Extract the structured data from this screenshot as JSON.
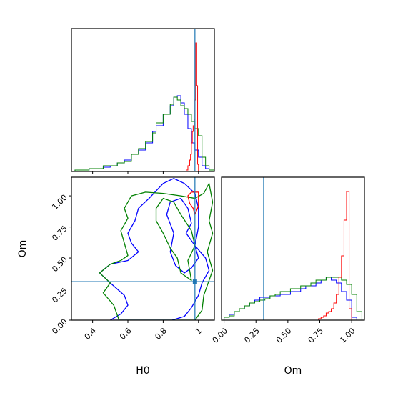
{
  "chart_data": [
    {
      "panel": "H0-marginal",
      "type": "histogram",
      "title": "",
      "xlabel": "",
      "ylabel": "",
      "xlim": [
        0.28,
        1.09
      ],
      "ylim": [
        0,
        1.0
      ],
      "xticks": [
        0.4,
        0.6,
        0.8,
        1.0
      ],
      "truth": 0.98,
      "truth_color": "#1f77b4",
      "series": [
        {
          "color": "#0000ff",
          "edges": [
            0.3,
            0.34,
            0.38,
            0.42,
            0.46,
            0.5,
            0.54,
            0.58,
            0.62,
            0.66,
            0.7,
            0.74,
            0.76,
            0.8,
            0.84,
            0.86,
            0.88,
            0.9,
            0.92,
            0.94,
            0.96,
            0.98,
            1.0,
            1.02,
            1.04,
            1.06,
            1.09
          ],
          "values": [
            0.01,
            0.01,
            0.02,
            0.02,
            0.03,
            0.04,
            0.06,
            0.08,
            0.12,
            0.15,
            0.2,
            0.28,
            0.32,
            0.4,
            0.46,
            0.52,
            0.53,
            0.48,
            0.4,
            0.3,
            0.2,
            0.15,
            0.1,
            0.04,
            0.02,
            0.01
          ]
        },
        {
          "color": "#008000",
          "edges": [
            0.3,
            0.34,
            0.38,
            0.42,
            0.46,
            0.5,
            0.54,
            0.58,
            0.62,
            0.66,
            0.7,
            0.74,
            0.76,
            0.8,
            0.84,
            0.86,
            0.88,
            0.9,
            0.92,
            0.94,
            0.96,
            0.98,
            1.0,
            1.02,
            1.04,
            1.06,
            1.09
          ],
          "values": [
            0.01,
            0.01,
            0.02,
            0.02,
            0.04,
            0.04,
            0.06,
            0.07,
            0.12,
            0.16,
            0.21,
            0.27,
            0.34,
            0.4,
            0.47,
            0.52,
            0.5,
            0.46,
            0.44,
            0.4,
            0.35,
            0.3,
            0.25,
            0.1,
            0.04,
            0.01
          ]
        },
        {
          "color": "#ff0000",
          "edges": [
            0.93,
            0.94,
            0.95,
            0.955,
            0.96,
            0.965,
            0.97,
            0.975,
            0.98,
            0.985,
            0.99,
            0.995,
            1.0
          ],
          "values": [
            0.01,
            0.04,
            0.08,
            0.12,
            0.2,
            0.28,
            0.32,
            0.36,
            0.5,
            0.9,
            0.6,
            0.05
          ]
        }
      ]
    },
    {
      "panel": "Om-marginal",
      "type": "histogram",
      "title": "",
      "xlabel": "Om",
      "ylabel": "",
      "xlim": [
        -0.02,
        1.1
      ],
      "ylim": [
        0,
        1.0
      ],
      "xticks": [
        0.0,
        0.25,
        0.5,
        0.75,
        1.0
      ],
      "xticklabels": [
        "0.00",
        "0.25",
        "0.50",
        "0.75",
        "1.00"
      ],
      "truth": 0.31,
      "truth_color": "#1f77b4",
      "series": [
        {
          "color": "#0000ff",
          "edges": [
            0.0,
            0.04,
            0.08,
            0.12,
            0.16,
            0.2,
            0.24,
            0.28,
            0.32,
            0.36,
            0.4,
            0.44,
            0.48,
            0.52,
            0.56,
            0.6,
            0.64,
            0.68,
            0.72,
            0.76,
            0.8,
            0.84,
            0.88,
            0.92,
            0.96,
            1.0,
            1.04
          ],
          "values": [
            0.02,
            0.04,
            0.06,
            0.08,
            0.1,
            0.12,
            0.14,
            0.16,
            0.16,
            0.17,
            0.17,
            0.18,
            0.18,
            0.2,
            0.2,
            0.22,
            0.24,
            0.24,
            0.26,
            0.28,
            0.3,
            0.28,
            0.26,
            0.2,
            0.14,
            0.02
          ]
        },
        {
          "color": "#008000",
          "edges": [
            0.0,
            0.04,
            0.08,
            0.12,
            0.16,
            0.2,
            0.24,
            0.28,
            0.32,
            0.36,
            0.4,
            0.44,
            0.48,
            0.52,
            0.56,
            0.6,
            0.64,
            0.68,
            0.72,
            0.76,
            0.8,
            0.84,
            0.88,
            0.92,
            0.96,
            1.0,
            1.04,
            1.08
          ],
          "values": [
            0.02,
            0.03,
            0.06,
            0.08,
            0.1,
            0.12,
            0.13,
            0.14,
            0.15,
            0.17,
            0.18,
            0.2,
            0.2,
            0.22,
            0.22,
            0.24,
            0.24,
            0.26,
            0.28,
            0.28,
            0.3,
            0.3,
            0.3,
            0.28,
            0.25,
            0.18,
            0.06
          ]
        },
        {
          "color": "#ff0000",
          "edges": [
            0.74,
            0.76,
            0.78,
            0.8,
            0.82,
            0.84,
            0.86,
            0.88,
            0.9,
            0.92,
            0.94,
            0.96,
            0.98,
            1.0
          ],
          "values": [
            0.01,
            0.02,
            0.03,
            0.05,
            0.06,
            0.08,
            0.12,
            0.18,
            0.3,
            0.45,
            0.7,
            0.9,
            0.08
          ]
        }
      ]
    },
    {
      "panel": "H0-Om-joint",
      "type": "contour",
      "title": "",
      "xlabel": "H0",
      "ylabel": "Om",
      "xlim": [
        0.28,
        1.09
      ],
      "ylim": [
        0.0,
        1.15
      ],
      "xticks": [
        0.4,
        0.6,
        0.8,
        1.0
      ],
      "yticks": [
        0.0,
        0.25,
        0.5,
        0.75,
        1.0
      ],
      "yticklabels": [
        "0.00",
        "0.25",
        "0.50",
        "0.75",
        "1.00"
      ],
      "truth": [
        0.98,
        0.31
      ],
      "truth_color": "#1f77b4",
      "series": [
        {
          "color": "#0000ff",
          "contours": [
            [
              [
                0.5,
                0.0
              ],
              [
                0.56,
                0.05
              ],
              [
                0.6,
                0.12
              ],
              [
                0.58,
                0.2
              ],
              [
                0.5,
                0.3
              ],
              [
                0.44,
                0.38
              ],
              [
                0.5,
                0.45
              ],
              [
                0.6,
                0.48
              ],
              [
                0.66,
                0.55
              ],
              [
                0.62,
                0.62
              ],
              [
                0.6,
                0.7
              ],
              [
                0.64,
                0.8
              ],
              [
                0.66,
                0.9
              ],
              [
                0.72,
                0.98
              ],
              [
                0.8,
                1.1
              ],
              [
                0.86,
                1.14
              ],
              [
                0.92,
                1.1
              ],
              [
                0.98,
                1.02
              ],
              [
                1.0,
                0.9
              ],
              [
                1.0,
                0.75
              ],
              [
                0.98,
                0.6
              ],
              [
                1.04,
                0.5
              ],
              [
                1.06,
                0.4
              ],
              [
                1.02,
                0.3
              ],
              [
                1.0,
                0.2
              ],
              [
                0.96,
                0.1
              ],
              [
                0.92,
                0.03
              ],
              [
                0.85,
                0.0
              ]
            ],
            [
              [
                0.84,
                0.95
              ],
              [
                0.9,
                0.98
              ],
              [
                0.94,
                0.9
              ],
              [
                0.96,
                0.78
              ],
              [
                0.93,
                0.7
              ],
              [
                0.98,
                0.6
              ],
              [
                1.0,
                0.5
              ],
              [
                0.96,
                0.42
              ],
              [
                0.92,
                0.38
              ],
              [
                0.87,
                0.44
              ],
              [
                0.84,
                0.55
              ],
              [
                0.86,
                0.7
              ],
              [
                0.82,
                0.85
              ]
            ]
          ]
        },
        {
          "color": "#008000",
          "contours": [
            [
              [
                0.55,
                0.0
              ],
              [
                0.52,
                0.12
              ],
              [
                0.46,
                0.22
              ],
              [
                0.5,
                0.3
              ],
              [
                0.44,
                0.38
              ],
              [
                0.5,
                0.45
              ],
              [
                0.56,
                0.48
              ],
              [
                0.6,
                0.52
              ],
              [
                0.58,
                0.62
              ],
              [
                0.56,
                0.72
              ],
              [
                0.6,
                0.82
              ],
              [
                0.58,
                0.9
              ],
              [
                0.62,
                1.0
              ],
              [
                0.7,
                1.03
              ],
              [
                0.8,
                1.02
              ],
              [
                0.9,
                1.0
              ],
              [
                0.98,
                0.98
              ],
              [
                1.03,
                1.02
              ],
              [
                1.06,
                1.1
              ],
              [
                1.08,
                0.95
              ],
              [
                1.06,
                0.8
              ],
              [
                1.08,
                0.7
              ],
              [
                1.05,
                0.55
              ],
              [
                1.08,
                0.4
              ],
              [
                1.03,
                0.2
              ],
              [
                1.02,
                0.08
              ],
              [
                0.98,
                0.0
              ]
            ],
            [
              [
                0.8,
                0.98
              ],
              [
                0.76,
                0.9
              ],
              [
                0.76,
                0.8
              ],
              [
                0.8,
                0.7
              ],
              [
                0.84,
                0.58
              ],
              [
                0.88,
                0.5
              ],
              [
                0.9,
                0.38
              ],
              [
                0.96,
                0.32
              ],
              [
                0.94,
                0.48
              ],
              [
                0.98,
                0.6
              ],
              [
                0.96,
                0.72
              ],
              [
                0.9,
                0.85
              ],
              [
                0.86,
                0.95
              ]
            ]
          ]
        },
        {
          "color": "#ff0000",
          "contours": [
            [
              [
                0.94,
                1.0
              ],
              [
                0.96,
                1.03
              ],
              [
                1.0,
                1.03
              ],
              [
                1.0,
                0.92
              ],
              [
                0.98,
                0.85
              ],
              [
                0.97,
                0.9
              ],
              [
                0.95,
                0.94
              ]
            ]
          ]
        }
      ]
    }
  ]
}
